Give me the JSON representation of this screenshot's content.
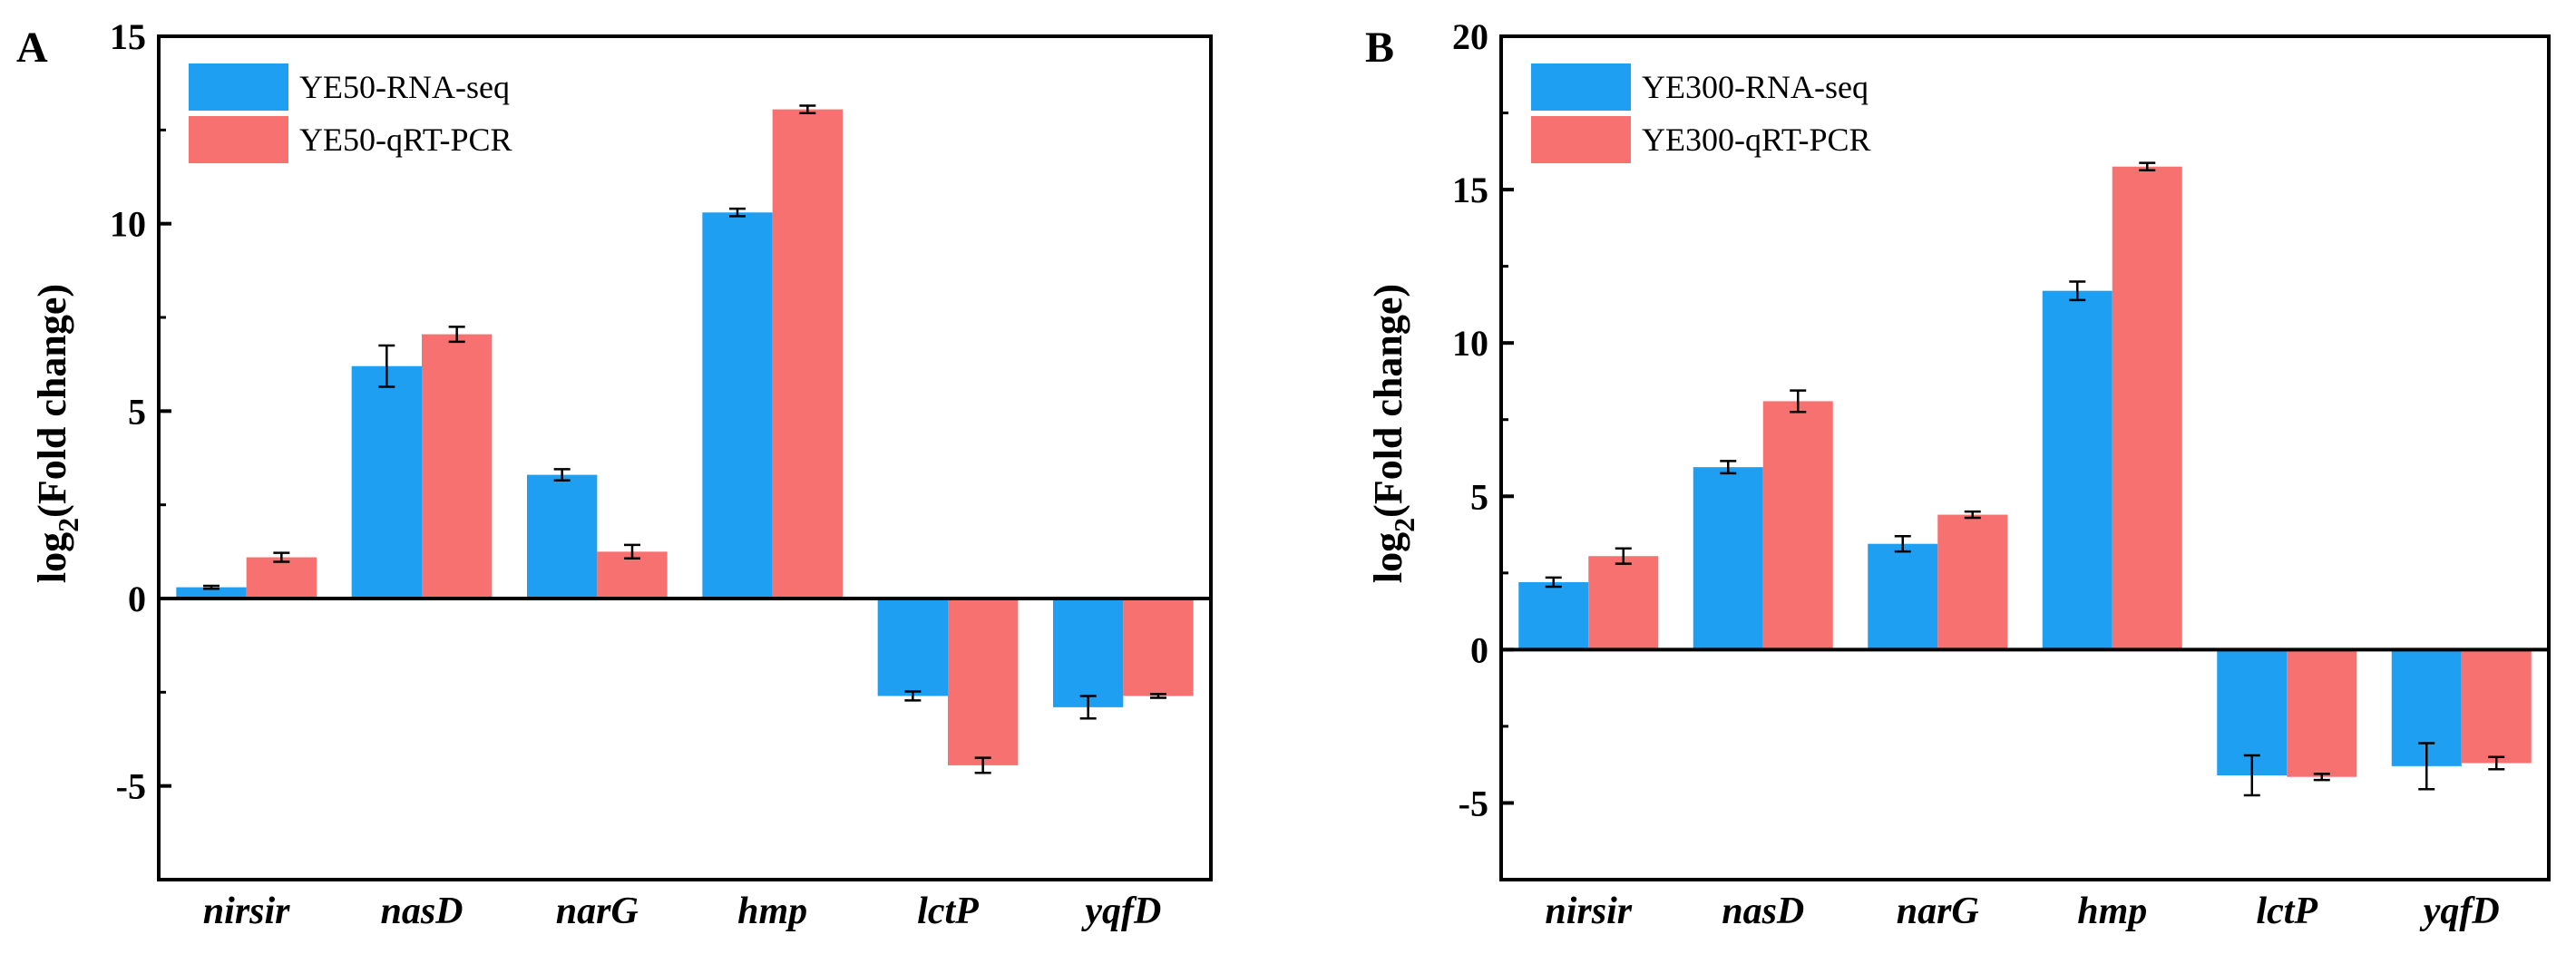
{
  "chart_data": [
    {
      "type": "bar",
      "panel": "A",
      "categories": [
        "nirsir",
        "nasD",
        "narG",
        "hmp",
        "lctP",
        "yqfD"
      ],
      "series": [
        {
          "name": "YE50-RNA-seq",
          "color": "#1E9FF2",
          "values": [
            0.3,
            6.2,
            3.3,
            10.3,
            -2.6,
            -2.9
          ],
          "errors": [
            0.04,
            0.55,
            0.15,
            0.1,
            0.12,
            0.3
          ]
        },
        {
          "name": "YE50-qRT-PCR",
          "color": "#F87171",
          "values": [
            1.1,
            7.05,
            1.25,
            13.05,
            -4.45,
            -2.6
          ],
          "errors": [
            0.12,
            0.2,
            0.18,
            0.1,
            0.2,
            0.05
          ]
        }
      ],
      "ylabel_main": "log",
      "ylabel_sub": "2",
      "ylabel_rest": "(Fold change)",
      "ylim": [
        -7.5,
        15
      ],
      "yticks": [
        15,
        10,
        5,
        0,
        -5
      ],
      "ytick_labels": [
        "15",
        "10",
        "5",
        "0",
        "-5"
      ],
      "legend_position": "top-left"
    },
    {
      "type": "bar",
      "panel": "B",
      "categories": [
        "nirsir",
        "nasD",
        "narG",
        "hmp",
        "lctP",
        "yqfD"
      ],
      "series": [
        {
          "name": "YE300-RNA-seq",
          "color": "#1E9FF2",
          "values": [
            2.2,
            5.95,
            3.45,
            11.7,
            -4.1,
            -3.8
          ],
          "errors": [
            0.15,
            0.2,
            0.25,
            0.3,
            0.65,
            0.75
          ]
        },
        {
          "name": "YE300-qRT-PCR",
          "color": "#F87171",
          "values": [
            3.05,
            8.1,
            4.4,
            15.75,
            -4.15,
            -3.7
          ],
          "errors": [
            0.25,
            0.35,
            0.1,
            0.12,
            0.1,
            0.2
          ]
        }
      ],
      "ylabel_main": "log",
      "ylabel_sub": "2",
      "ylabel_rest": "(Fold change)",
      "ylim": [
        -7.5,
        20
      ],
      "yticks": [
        20,
        15,
        10,
        5,
        0,
        -5
      ],
      "ytick_labels": [
        "20",
        "15",
        "10",
        "5",
        "0",
        "-5"
      ],
      "legend_position": "top-left"
    }
  ]
}
